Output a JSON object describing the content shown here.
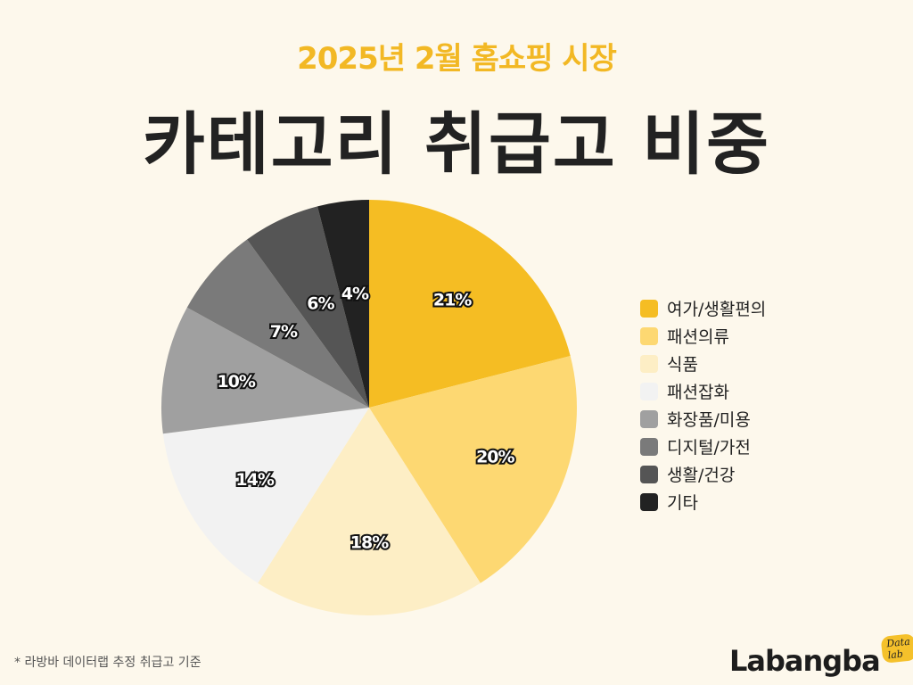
{
  "header": {
    "subtitle": "2025년 2월 홈쇼핑 시장",
    "title": "카테고리 취급고 비중"
  },
  "chart_data": {
    "type": "pie",
    "title": "카테고리 취급고 비중",
    "subtitle": "2025년 2월 홈쇼핑 시장",
    "legend_position": "right",
    "start": "12 o'clock, clockwise",
    "categories": [
      "여가/생활편의",
      "패션의류",
      "식품",
      "패션잡화",
      "화장품/미용",
      "디지털/가전",
      "생활/건강",
      "기타"
    ],
    "values": [
      21,
      20,
      18,
      14,
      10,
      7,
      6,
      4
    ],
    "labels": [
      "21%",
      "20%",
      "18%",
      "14%",
      "10%",
      "7%",
      "6%",
      "4%"
    ],
    "colors": [
      "#f5bd23",
      "#fdd872",
      "#fdeec5",
      "#f2f2f2",
      "#a0a0a0",
      "#7a7a7a",
      "#555555",
      "#222222"
    ]
  },
  "footnote": "* 라방바 데이터랩 추정 취급고 기준",
  "brand": {
    "name": "Labangba",
    "tag": "Data lab"
  }
}
